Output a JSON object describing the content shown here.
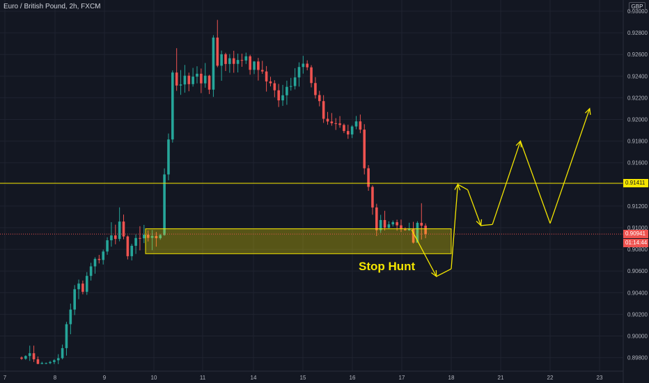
{
  "header": {
    "symbol": "Euro / British Pound, 2h, FXCM",
    "currency": "GBP"
  },
  "annotation": "Stop Hunt",
  "price_labels": {
    "level_line": "0.91411",
    "last_price": "0.90941",
    "countdown": "01:14:44"
  },
  "colors": {
    "up": "#26a69a",
    "down": "#ef5350",
    "zone": "#f4e600",
    "background": "#131722"
  },
  "chart_data": {
    "type": "candlestick",
    "y_axis_labels": [
      "0.93000",
      "0.92800",
      "0.92600",
      "0.92400",
      "0.92200",
      "0.92000",
      "0.91800",
      "0.91600",
      "0.91400",
      "0.91200",
      "0.91000",
      "0.90800",
      "0.90600",
      "0.90400",
      "0.90200",
      "0.90000",
      "0.89800"
    ],
    "ylim": [
      0.8975,
      0.9305
    ],
    "x_axis_labels": [
      "7",
      "8",
      "9",
      "10",
      "11",
      "14",
      "15",
      "16",
      "17",
      "18",
      "21",
      "22",
      "23"
    ],
    "horizontal_line": 0.91411,
    "last_price": 0.90941,
    "zone": {
      "from_label": "10",
      "to_label": "18",
      "low": 0.9076,
      "high": 0.9099
    },
    "projection_path": [
      {
        "day": 17.2,
        "price": 0.9098
      },
      {
        "day": 17.7,
        "price": 0.9055
      },
      {
        "day": 18.0,
        "price": 0.9062
      },
      {
        "day": 18.4,
        "price": 0.914
      },
      {
        "day": 19.0,
        "price": 0.9135
      },
      {
        "day": 19.8,
        "price": 0.9102
      },
      {
        "day": 20.5,
        "price": 0.9103
      },
      {
        "day": 21.4,
        "price": 0.918
      },
      {
        "day": 22.0,
        "price": 0.9104
      },
      {
        "day": 22.8,
        "price": 0.921
      }
    ],
    "arrowheads_at": [
      1,
      4,
      6,
      8,
      10
    ],
    "candles_ohlc": [
      [
        0.89801,
        0.89811,
        0.8978,
        0.8979
      ],
      [
        0.8979,
        0.89822,
        0.8978,
        0.89815
      ],
      [
        0.89815,
        0.89911,
        0.8977,
        0.89841
      ],
      [
        0.89841,
        0.89911,
        0.8976,
        0.89785
      ],
      [
        0.89785,
        0.89811,
        0.8974,
        0.89742
      ],
      [
        0.89742,
        0.89762,
        0.8974,
        0.8975
      ],
      [
        0.8975,
        0.89755,
        0.8974,
        0.8975
      ],
      [
        0.8975,
        0.8977,
        0.8974,
        0.8976
      ],
      [
        0.8976,
        0.89786,
        0.89741,
        0.89776
      ],
      [
        0.89776,
        0.89832,
        0.8974,
        0.89795
      ],
      [
        0.89795,
        0.89921,
        0.89784,
        0.89888
      ],
      [
        0.89888,
        0.90131,
        0.89819,
        0.90109
      ],
      [
        0.90109,
        0.90299,
        0.90016,
        0.90244
      ],
      [
        0.90244,
        0.9047,
        0.90193,
        0.90432
      ],
      [
        0.90432,
        0.90521,
        0.9034,
        0.90484
      ],
      [
        0.90484,
        0.90512,
        0.90385,
        0.90408
      ],
      [
        0.90408,
        0.9059,
        0.9038,
        0.90555
      ],
      [
        0.90555,
        0.90676,
        0.90512,
        0.90643
      ],
      [
        0.90643,
        0.90727,
        0.90575,
        0.90712
      ],
      [
        0.90712,
        0.90749,
        0.9067,
        0.90702
      ],
      [
        0.90702,
        0.90798,
        0.9066,
        0.9078
      ],
      [
        0.9078,
        0.90912,
        0.9075,
        0.90884
      ],
      [
        0.90884,
        0.91051,
        0.90825,
        0.90929
      ],
      [
        0.90929,
        0.91028,
        0.90847,
        0.90896
      ],
      [
        0.90896,
        0.91188,
        0.90874,
        0.91057
      ],
      [
        0.91057,
        0.91121,
        0.90893,
        0.90919
      ],
      [
        0.90919,
        0.90929,
        0.90707,
        0.90737
      ],
      [
        0.90737,
        0.90851,
        0.90698,
        0.90833
      ],
      [
        0.90833,
        0.90938,
        0.90758,
        0.90905
      ],
      [
        0.90905,
        0.91014,
        0.90791,
        0.90902
      ],
      [
        0.90902,
        0.91026,
        0.90858,
        0.90935
      ],
      [
        0.90935,
        0.90975,
        0.90873,
        0.90906
      ],
      [
        0.90906,
        0.90979,
        0.90792,
        0.90924
      ],
      [
        0.90924,
        0.90961,
        0.90825,
        0.90903
      ],
      [
        0.90903,
        0.90943,
        0.90889,
        0.90932
      ],
      [
        0.90932,
        0.91548,
        0.90927,
        0.91492
      ],
      [
        0.91492,
        0.9187,
        0.91438,
        0.91815
      ],
      [
        0.91815,
        0.92453,
        0.91786,
        0.92433
      ],
      [
        0.92433,
        0.92658,
        0.92264,
        0.92313
      ],
      [
        0.92313,
        0.92456,
        0.92227,
        0.92323
      ],
      [
        0.92323,
        0.92503,
        0.92247,
        0.92404
      ],
      [
        0.92404,
        0.92432,
        0.9226,
        0.92326
      ],
      [
        0.92326,
        0.92476,
        0.92303,
        0.92395
      ],
      [
        0.92395,
        0.92491,
        0.92333,
        0.92422
      ],
      [
        0.92422,
        0.9247,
        0.92243,
        0.92333
      ],
      [
        0.92333,
        0.92521,
        0.92293,
        0.92404
      ],
      [
        0.92404,
        0.92412,
        0.92234,
        0.92275
      ],
      [
        0.92275,
        0.92778,
        0.92208,
        0.92756
      ],
      [
        0.92756,
        0.92919,
        0.92482,
        0.92496
      ],
      [
        0.92496,
        0.92636,
        0.92357,
        0.92602
      ],
      [
        0.92602,
        0.92616,
        0.92447,
        0.92512
      ],
      [
        0.92512,
        0.92604,
        0.92431,
        0.92565
      ],
      [
        0.92565,
        0.92634,
        0.92431,
        0.92513
      ],
      [
        0.92513,
        0.92608,
        0.92434,
        0.92549
      ],
      [
        0.92549,
        0.92607,
        0.92486,
        0.92544
      ],
      [
        0.92544,
        0.92617,
        0.92512,
        0.92583
      ],
      [
        0.92583,
        0.92597,
        0.92413,
        0.92458
      ],
      [
        0.92458,
        0.92539,
        0.92419,
        0.92535
      ],
      [
        0.92535,
        0.92568,
        0.92359,
        0.92457
      ],
      [
        0.92457,
        0.92541,
        0.92421,
        0.92443
      ],
      [
        0.92443,
        0.92493,
        0.92257,
        0.92351
      ],
      [
        0.92351,
        0.92394,
        0.92305,
        0.92334
      ],
      [
        0.92334,
        0.92362,
        0.92205,
        0.92269
      ],
      [
        0.92269,
        0.92328,
        0.92115,
        0.92176
      ],
      [
        0.92176,
        0.92319,
        0.92125,
        0.92223
      ],
      [
        0.92223,
        0.92358,
        0.92135,
        0.92301
      ],
      [
        0.92301,
        0.92384,
        0.92266,
        0.92308
      ],
      [
        0.92308,
        0.92473,
        0.92277,
        0.92388
      ],
      [
        0.92388,
        0.92527,
        0.92303,
        0.92484
      ],
      [
        0.92484,
        0.92587,
        0.92423,
        0.92515
      ],
      [
        0.92515,
        0.92546,
        0.92454,
        0.92481
      ],
      [
        0.92481,
        0.92501,
        0.92296,
        0.92336
      ],
      [
        0.92336,
        0.92391,
        0.92193,
        0.92225
      ],
      [
        0.92225,
        0.92264,
        0.92121,
        0.92169
      ],
      [
        0.92169,
        0.92224,
        0.91968,
        0.92006
      ],
      [
        0.92006,
        0.92069,
        0.91951,
        0.91981
      ],
      [
        0.91981,
        0.92059,
        0.91942,
        0.91965
      ],
      [
        0.91965,
        0.92012,
        0.91903,
        0.91963
      ],
      [
        0.91963,
        0.92031,
        0.91923,
        0.91949
      ],
      [
        0.91949,
        0.91962,
        0.91874,
        0.91893
      ],
      [
        0.91893,
        0.91951,
        0.91821,
        0.91861
      ],
      [
        0.91861,
        0.91947,
        0.91828,
        0.91935
      ],
      [
        0.91935,
        0.92032,
        0.91909,
        0.91982
      ],
      [
        0.91982,
        0.92045,
        0.91873,
        0.91906
      ],
      [
        0.91906,
        0.91956,
        0.91492,
        0.91549
      ],
      [
        0.91549,
        0.91578,
        0.91341,
        0.91377
      ],
      [
        0.91377,
        0.91391,
        0.9112,
        0.91187
      ],
      [
        0.91187,
        0.91221,
        0.90923,
        0.90977
      ],
      [
        0.90977,
        0.91119,
        0.90952,
        0.91071
      ],
      [
        0.91071,
        0.91156,
        0.90974,
        0.91
      ],
      [
        0.91,
        0.91059,
        0.90994,
        0.91031
      ],
      [
        0.91031,
        0.91067,
        0.91011,
        0.91051
      ],
      [
        0.91051,
        0.91074,
        0.90973,
        0.91022
      ],
      [
        0.91022,
        0.91075,
        0.9096,
        0.90986
      ],
      [
        0.90986,
        0.91003,
        0.90973,
        0.90977
      ],
      [
        0.90977,
        0.91046,
        0.90972,
        0.90993
      ],
      [
        0.90993,
        0.91054,
        0.90854,
        0.90862
      ],
      [
        0.90862,
        0.9106,
        0.90862,
        0.91045
      ],
      [
        0.91045,
        0.91226,
        0.90891,
        0.91019
      ],
      [
        0.91019,
        0.9104,
        0.90903,
        0.90941
      ]
    ]
  }
}
